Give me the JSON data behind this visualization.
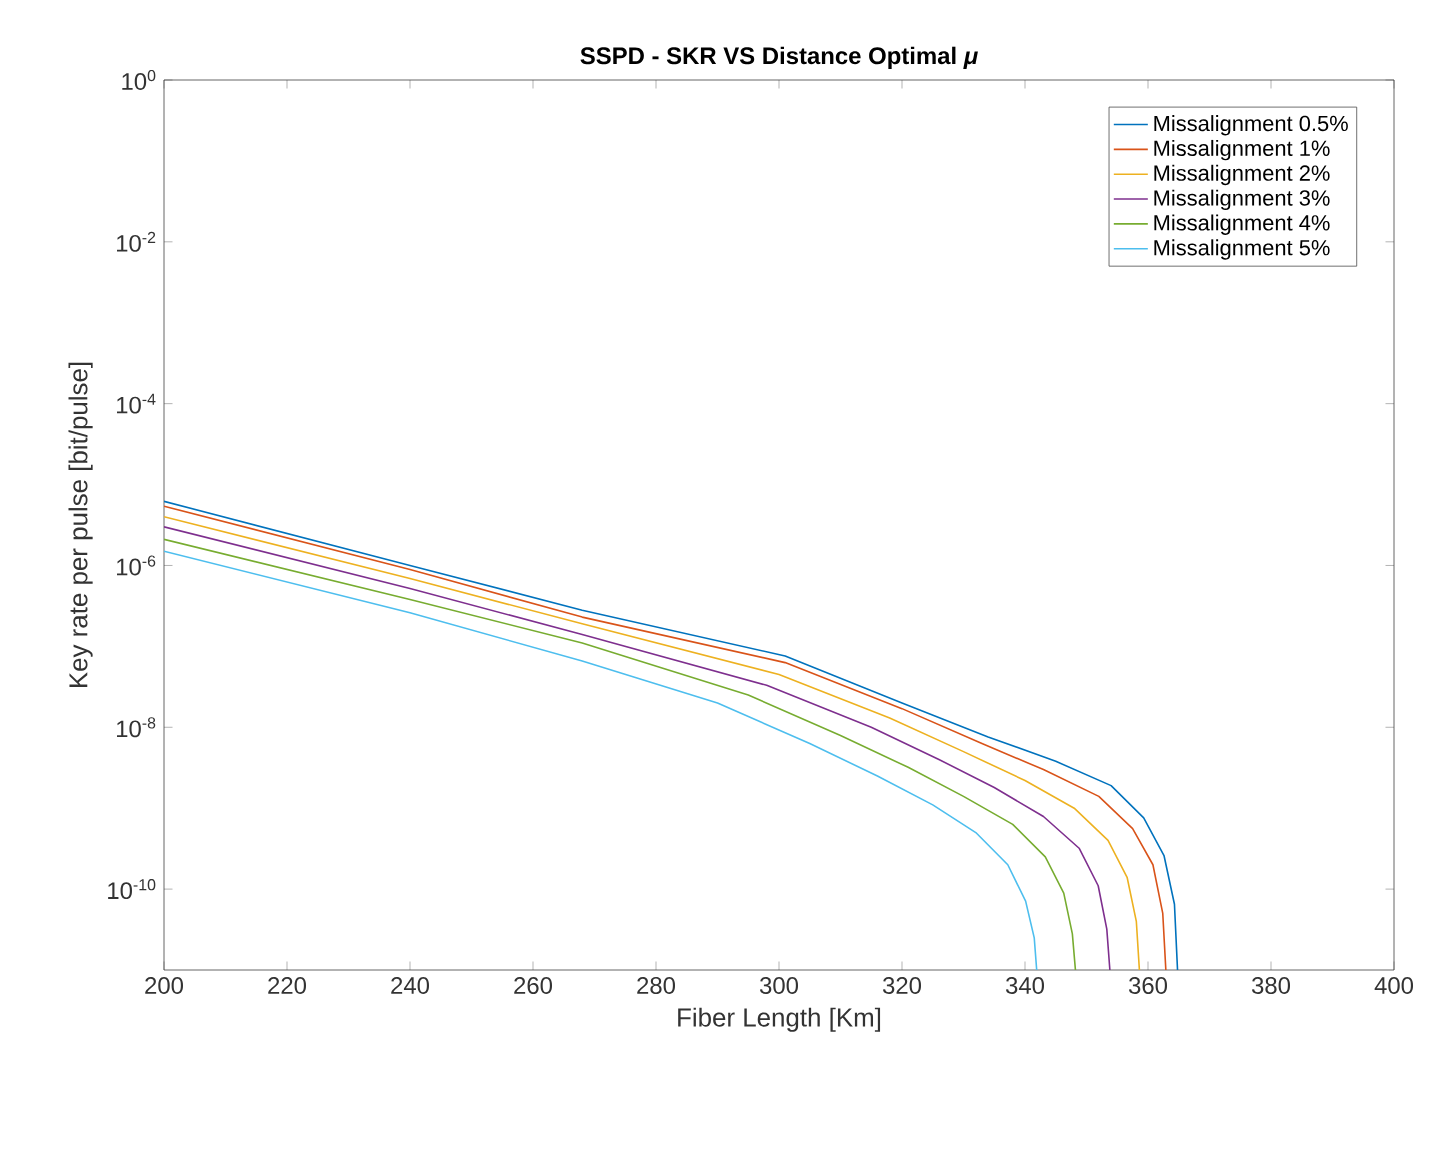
{
  "chart_data": {
    "type": "line",
    "title": "SSPD - SKR VS Distance Optimal *μ*",
    "xlabel": "Fiber Length [Km]",
    "ylabel": "Key rate per pulse [bit/pulse]",
    "log": "y",
    "xlim": [
      200,
      400
    ],
    "ylim": [
      1e-11,
      1
    ],
    "xticks": [
      200,
      220,
      240,
      260,
      280,
      300,
      320,
      340,
      360,
      380,
      400
    ],
    "yticks": [
      {
        "value": 1e-10,
        "label": "10$^{-10}$"
      },
      {
        "value": 1e-08,
        "label": "10$^{-8}$"
      },
      {
        "value": 1e-06,
        "label": "10$^{-6}$"
      },
      {
        "value": 0.0001,
        "label": "10$^{-4}$"
      },
      {
        "value": 0.01,
        "label": "10$^{-2}$"
      },
      {
        "value": 1,
        "label": "10$^{0}$"
      }
    ],
    "grid": false,
    "legend": "top right",
    "marker": "none",
    "line_style": "solid",
    "series": [
      {
        "name": "Missalignment 0.5%",
        "color": "#0072bd",
        "x": [
          200,
          240,
          268,
          301,
          320,
          334,
          345,
          354,
          359.3,
          362.6,
          364.3,
          364.8
        ],
        "values": [
          6.2e-06,
          1e-06,
          2.8e-07,
          7.6e-08,
          2e-08,
          7.6e-09,
          3.8e-09,
          1.9e-09,
          7.6e-10,
          2.6e-10,
          6.5e-11,
          1e-11
        ]
      },
      {
        "name": "Missalignment 1%",
        "color": "#d95319",
        "x": [
          200,
          240,
          268,
          301,
          320,
          333,
          343,
          352,
          357.5,
          360.8,
          362.4,
          362.9
        ],
        "values": [
          5.4e-06,
          8.9e-07,
          2.3e-07,
          6.3e-08,
          1.7e-08,
          6.3e-09,
          3e-09,
          1.4e-09,
          5.6e-10,
          2e-10,
          5e-11,
          1e-11
        ]
      },
      {
        "name": "Missalignment 2%",
        "color": "#edb120",
        "x": [
          200,
          240,
          268,
          300,
          318,
          330,
          340,
          348,
          353.5,
          356.6,
          358.1,
          358.6
        ],
        "values": [
          4e-06,
          6.9e-07,
          1.9e-07,
          4.5e-08,
          1.3e-08,
          5e-09,
          2.2e-09,
          1e-09,
          4e-10,
          1.4e-10,
          4e-11,
          1e-11
        ]
      },
      {
        "name": "Missalignment 3%",
        "color": "#7e2f8e",
        "x": [
          200,
          240,
          268,
          298,
          315,
          326,
          335,
          343,
          348.8,
          351.9,
          353.3,
          353.8
        ],
        "values": [
          3e-06,
          5.2e-07,
          1.4e-07,
          3.3e-08,
          1e-08,
          4e-09,
          1.8e-09,
          7.9e-10,
          3.2e-10,
          1.1e-10,
          3.2e-11,
          1e-11
        ]
      },
      {
        "name": "Missalignment 4%",
        "color": "#77ac30",
        "x": [
          200,
          240,
          268,
          295,
          310,
          321,
          330,
          338,
          343.3,
          346.3,
          347.7,
          348.2
        ],
        "values": [
          2.1e-06,
          3.8e-07,
          1.1e-07,
          2.5e-08,
          7.9e-09,
          3.2e-09,
          1.4e-09,
          6.3e-10,
          2.5e-10,
          8.9e-11,
          2.8e-11,
          1e-11
        ]
      },
      {
        "name": "Missalignment 5%",
        "color": "#4dbeee",
        "x": [
          200,
          240,
          268,
          290,
          305,
          316,
          325,
          332,
          337.2,
          340.1,
          341.5,
          341.9
        ],
        "values": [
          1.5e-06,
          2.6e-07,
          6.6e-08,
          2e-08,
          6.3e-09,
          2.5e-09,
          1.1e-09,
          5e-10,
          2e-10,
          7.1e-11,
          2.5e-11,
          1e-11
        ]
      }
    ]
  }
}
